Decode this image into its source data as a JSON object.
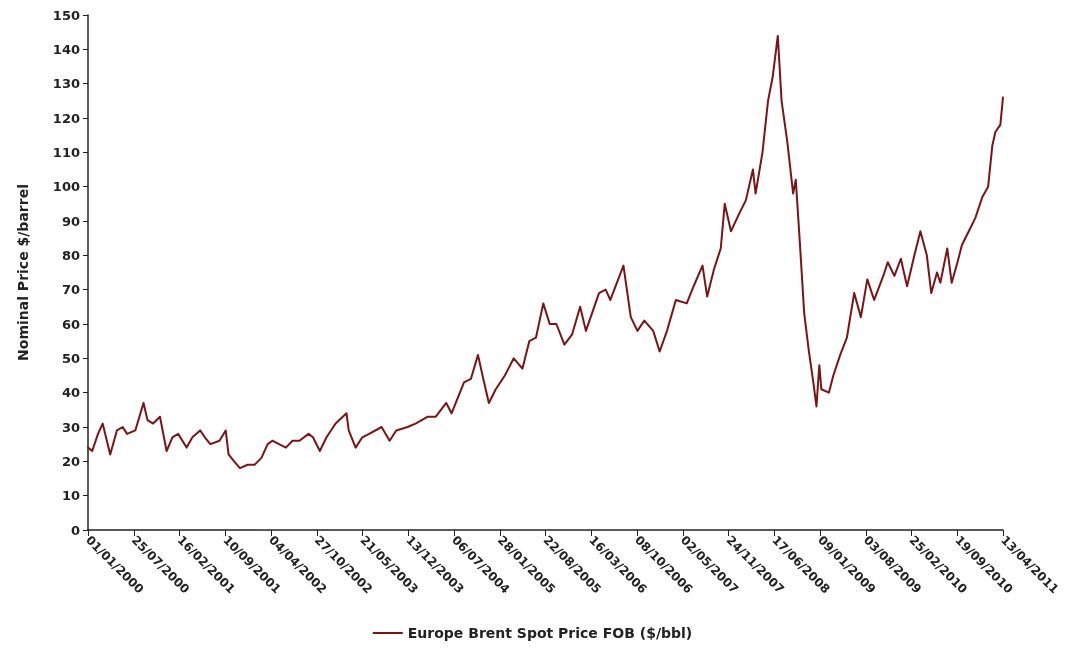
{
  "chart_data": {
    "type": "line",
    "ylabel": "Nominal Price $/barrel",
    "x": [
      "2000-01-01",
      "2000-01-20",
      "2000-02-15",
      "2000-03-07",
      "2000-04-10",
      "2000-05-10",
      "2000-06-05",
      "2000-06-25",
      "2000-08-01",
      "2000-09-07",
      "2000-09-25",
      "2000-10-20",
      "2000-11-20",
      "2000-12-20",
      "2001-01-15",
      "2001-02-10",
      "2001-03-20",
      "2001-04-15",
      "2001-05-20",
      "2001-06-10",
      "2001-07-05",
      "2001-08-15",
      "2001-09-12",
      "2001-09-25",
      "2001-10-20",
      "2001-11-15",
      "2001-12-20",
      "2002-01-20",
      "2002-02-20",
      "2002-03-20",
      "2002-04-10",
      "2002-05-10",
      "2002-06-10",
      "2002-07-10",
      "2002-08-10",
      "2002-09-20",
      "2002-10-10",
      "2002-11-10",
      "2002-12-10",
      "2003-01-20",
      "2003-03-10",
      "2003-03-20",
      "2003-04-20",
      "2003-05-20",
      "2003-06-20",
      "2003-08-15",
      "2003-09-20",
      "2003-10-20",
      "2003-12-10",
      "2004-01-15",
      "2004-03-10",
      "2004-04-15",
      "2004-06-01",
      "2004-06-25",
      "2004-08-20",
      "2004-09-20",
      "2004-10-22",
      "2004-11-15",
      "2004-12-10",
      "2005-01-10",
      "2005-02-20",
      "2005-04-01",
      "2005-05-10",
      "2005-06-10",
      "2005-07-10",
      "2005-08-12",
      "2005-09-10",
      "2005-10-10",
      "2005-11-15",
      "2005-12-20",
      "2006-01-25",
      "2006-02-20",
      "2006-04-20",
      "2006-05-20",
      "2006-06-10",
      "2006-08-08",
      "2006-09-10",
      "2006-10-10",
      "2006-11-10",
      "2006-12-20",
      "2007-01-18",
      "2007-02-20",
      "2007-04-01",
      "2007-05-20",
      "2007-06-20",
      "2007-07-30",
      "2007-08-20",
      "2007-09-20",
      "2007-10-20",
      "2007-11-07",
      "2007-12-05",
      "2008-01-10",
      "2008-02-10",
      "2008-03-13",
      "2008-03-25",
      "2008-04-25",
      "2008-05-20",
      "2008-06-10",
      "2008-07-03",
      "2008-07-20",
      "2008-08-15",
      "2008-09-10",
      "2008-09-22",
      "2008-10-10",
      "2008-10-30",
      "2008-11-20",
      "2008-12-10",
      "2008-12-24",
      "2009-01-06",
      "2009-01-15",
      "2009-02-18",
      "2009-03-10",
      "2009-04-10",
      "2009-05-10",
      "2009-06-12",
      "2009-07-12",
      "2009-08-10",
      "2009-09-10",
      "2009-10-21",
      "2009-11-10",
      "2009-12-10",
      "2010-01-08",
      "2010-02-05",
      "2010-03-10",
      "2010-04-06",
      "2010-05-05",
      "2010-05-25",
      "2010-06-20",
      "2010-07-05",
      "2010-08-05",
      "2010-08-25",
      "2010-09-20",
      "2010-10-10",
      "2010-11-10",
      "2010-12-10",
      "2011-01-10",
      "2011-02-05",
      "2011-02-24",
      "2011-03-10",
      "2011-04-01",
      "2011-04-13"
    ],
    "series": [
      {
        "name": "Europe Brent Spot Price FOB ($/bbl)",
        "color": "#7b1416",
        "values": [
          24,
          23,
          28,
          31,
          22,
          29,
          30,
          28,
          29,
          37,
          32,
          31,
          33,
          23,
          27,
          28,
          24,
          27,
          29,
          27,
          25,
          26,
          29,
          22,
          20,
          18,
          19,
          19,
          21,
          25,
          26,
          25,
          24,
          26,
          26,
          28,
          27,
          23,
          27,
          31,
          34,
          29,
          24,
          27,
          28,
          30,
          26,
          29,
          30,
          31,
          33,
          33,
          37,
          34,
          43,
          44,
          51,
          44,
          37,
          41,
          45,
          50,
          47,
          55,
          56,
          66,
          60,
          60,
          54,
          57,
          65,
          58,
          69,
          70,
          67,
          77,
          62,
          58,
          61,
          58,
          52,
          58,
          67,
          66,
          71,
          77,
          68,
          76,
          82,
          95,
          87,
          92,
          96,
          105,
          98,
          110,
          125,
          132,
          143.9,
          125,
          113,
          98,
          102,
          84,
          63,
          52,
          43,
          36,
          48,
          41,
          40,
          45,
          51,
          56,
          69,
          62,
          73,
          67,
          74,
          78,
          74,
          79,
          71,
          80,
          87,
          80,
          69,
          75,
          72,
          82,
          72,
          78,
          83,
          87,
          91,
          97,
          100,
          112,
          116,
          118,
          126
        ]
      }
    ],
    "xlim": [
      "2000-01-01",
      "2011-04-13"
    ],
    "xticks": [
      {
        "value": "2000-01-01",
        "label": "01/01/2000"
      },
      {
        "value": "2000-07-25",
        "label": "25/07/2000"
      },
      {
        "value": "2001-02-16",
        "label": "16/02/2001"
      },
      {
        "value": "2001-09-10",
        "label": "10/09/2001"
      },
      {
        "value": "2002-04-04",
        "label": "04/04/2002"
      },
      {
        "value": "2002-10-27",
        "label": "27/10/2002"
      },
      {
        "value": "2003-05-21",
        "label": "21/05/2003"
      },
      {
        "value": "2003-12-13",
        "label": "13/12/2003"
      },
      {
        "value": "2004-07-06",
        "label": "06/07/2004"
      },
      {
        "value": "2005-01-28",
        "label": "28/01/2005"
      },
      {
        "value": "2005-08-22",
        "label": "22/08/2005"
      },
      {
        "value": "2006-03-16",
        "label": "16/03/2006"
      },
      {
        "value": "2006-10-08",
        "label": "08/10/2006"
      },
      {
        "value": "2007-05-02",
        "label": "02/05/2007"
      },
      {
        "value": "2007-11-24",
        "label": "24/11/2007"
      },
      {
        "value": "2008-06-17",
        "label": "17/06/2008"
      },
      {
        "value": "2009-01-09",
        "label": "09/01/2009"
      },
      {
        "value": "2009-08-03",
        "label": "03/08/2009"
      },
      {
        "value": "2010-02-25",
        "label": "25/02/2010"
      },
      {
        "value": "2010-09-19",
        "label": "19/09/2010"
      },
      {
        "value": "2011-04-13",
        "label": "13/04/2011"
      }
    ],
    "ylim": [
      0,
      150
    ],
    "yticks": [
      0,
      10,
      20,
      30,
      40,
      50,
      60,
      70,
      80,
      90,
      100,
      110,
      120,
      130,
      140,
      150
    ],
    "grid": false,
    "legend": "bottom",
    "marker": "none",
    "line_style": "solid"
  }
}
